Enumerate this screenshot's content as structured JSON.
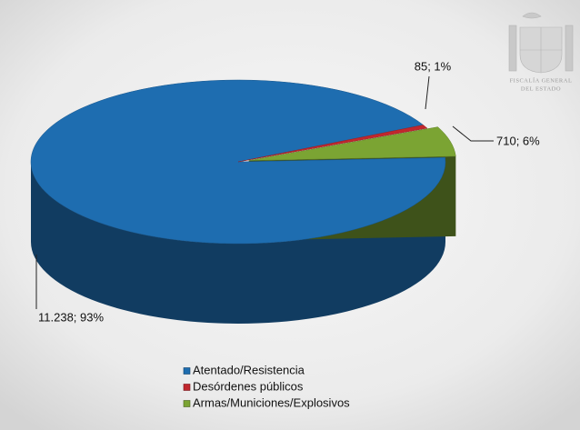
{
  "chart_data": {
    "type": "pie3d",
    "categories": [
      "Atentado/Resistencia",
      "Desórdenes públicos",
      "Armas/Municiones/Explosivos"
    ],
    "values": [
      11238,
      85,
      710
    ],
    "value_labels": [
      "11.238; 93%",
      "85; 1%",
      "710; 6%"
    ],
    "colors": [
      "#1e6db0",
      "#c1272d",
      "#7ba433"
    ]
  },
  "logo": {
    "lines": [
      "FISCALÍA GENERAL",
      "DEL ESTADO"
    ]
  }
}
